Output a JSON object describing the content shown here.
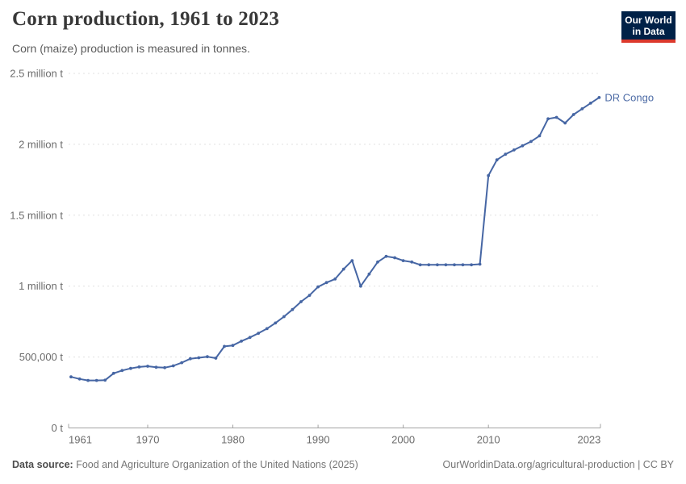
{
  "header": {
    "title": "Corn production, 1961 to 2023",
    "subtitle": "Corn (maize) production is measured in tonnes."
  },
  "logo": {
    "line1": "Our World",
    "line2": "in Data",
    "bg_color": "#002147",
    "accent_color": "#dc392c"
  },
  "chart_data": {
    "type": "line",
    "title": "Corn production, 1961 to 2023",
    "ylabel": "",
    "xlabel": "",
    "unit": "tonnes",
    "grid": "horizontal-dashed",
    "legend_position": "end-of-line-label",
    "xlim": [
      1961,
      2023
    ],
    "ylim": [
      0,
      2500000
    ],
    "xticks": [
      1961,
      1970,
      1980,
      1990,
      2000,
      2010,
      2023
    ],
    "yticks": [
      {
        "value": 0,
        "label": "0 t"
      },
      {
        "value": 500000,
        "label": "500,000 t"
      },
      {
        "value": 1000000,
        "label": "1 million t"
      },
      {
        "value": 1500000,
        "label": "1.5 million t"
      },
      {
        "value": 2000000,
        "label": "2 million t"
      },
      {
        "value": 2500000,
        "label": "2.5 million t"
      }
    ],
    "x": [
      1961,
      1962,
      1963,
      1964,
      1965,
      1966,
      1967,
      1968,
      1969,
      1970,
      1971,
      1972,
      1973,
      1974,
      1975,
      1976,
      1977,
      1978,
      1979,
      1980,
      1981,
      1982,
      1983,
      1984,
      1985,
      1986,
      1987,
      1988,
      1989,
      1990,
      1991,
      1992,
      1993,
      1994,
      1995,
      1996,
      1997,
      1998,
      1999,
      2000,
      2001,
      2002,
      2003,
      2004,
      2005,
      2006,
      2007,
      2008,
      2009,
      2010,
      2011,
      2012,
      2013,
      2014,
      2015,
      2016,
      2017,
      2018,
      2019,
      2020,
      2021,
      2022,
      2023
    ],
    "series": [
      {
        "name": "DR Congo",
        "color": "#4666a4",
        "values": [
          360000,
          345000,
          335000,
          335000,
          337000,
          385000,
          405000,
          420000,
          430000,
          435000,
          428000,
          425000,
          438000,
          460000,
          488000,
          495000,
          502000,
          492000,
          575000,
          582000,
          612000,
          638000,
          668000,
          700000,
          740000,
          785000,
          835000,
          890000,
          935000,
          995000,
          1025000,
          1050000,
          1120000,
          1180000,
          1000000,
          1085000,
          1170000,
          1210000,
          1200000,
          1180000,
          1170000,
          1150000,
          1150000,
          1150000,
          1150000,
          1150000,
          1150000,
          1150000,
          1155000,
          1780000,
          1890000,
          1930000,
          1960000,
          1990000,
          2020000,
          2060000,
          2180000,
          2190000,
          2150000,
          2210000,
          2250000,
          2290000,
          2330000
        ]
      }
    ]
  },
  "footer": {
    "source_label": "Data source:",
    "source_text": "Food and Agriculture Organization of the United Nations (2025)",
    "credit": "OurWorldinData.org/agricultural-production | CC BY"
  },
  "colors": {
    "line": "#4666a4",
    "entity_label": "#4e6ca6",
    "grid": "#e0e0e0",
    "axis": "#a3a3a3",
    "tick_text": "#6b6b6b"
  }
}
